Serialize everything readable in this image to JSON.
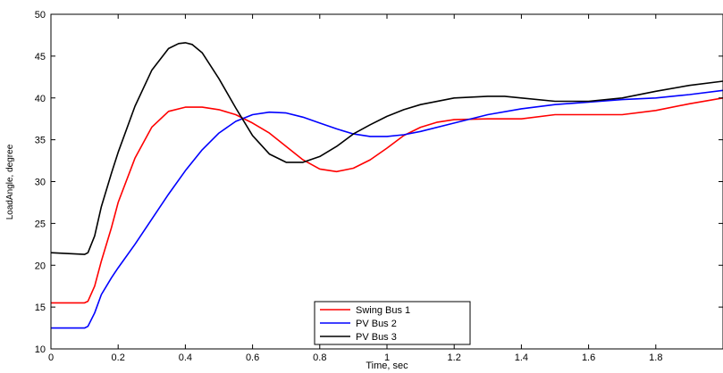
{
  "chart_data": {
    "type": "line",
    "title": "",
    "xlabel": "Time,  sec",
    "ylabel": "LoadAngle, degree",
    "xlim": [
      0,
      2
    ],
    "ylim": [
      10,
      50
    ],
    "xticks": [
      0,
      0.2,
      0.4,
      0.6,
      0.8,
      1,
      1.2,
      1.4,
      1.6,
      1.8
    ],
    "xtick_labels": [
      "0",
      "0.2",
      "0.4",
      "0.6",
      "0.8",
      "1",
      "1.2",
      "1.4",
      "1.6",
      "1.8"
    ],
    "yticks": [
      10,
      15,
      20,
      25,
      30,
      35,
      40,
      45,
      50
    ],
    "ytick_labels": [
      "10",
      "15",
      "20",
      "25",
      "30",
      "35",
      "40",
      "45",
      "50"
    ],
    "grid": false,
    "legend_position": "bottom-center",
    "series": [
      {
        "name": "Swing Bus 1",
        "color": "#ff0000",
        "x": [
          0,
          0.1,
          0.11,
          0.13,
          0.15,
          0.18,
          0.2,
          0.25,
          0.3,
          0.35,
          0.4,
          0.45,
          0.5,
          0.55,
          0.6,
          0.65,
          0.7,
          0.75,
          0.8,
          0.85,
          0.9,
          0.95,
          1.0,
          1.05,
          1.1,
          1.15,
          1.2,
          1.3,
          1.4,
          1.5,
          1.6,
          1.7,
          1.8,
          1.9,
          2.0
        ],
        "y": [
          15.5,
          15.5,
          15.7,
          17.5,
          20.5,
          24.5,
          27.5,
          32.8,
          36.5,
          38.4,
          38.9,
          38.9,
          38.6,
          38.0,
          37.0,
          35.8,
          34.2,
          32.6,
          31.5,
          31.2,
          31.6,
          32.6,
          34.0,
          35.5,
          36.5,
          37.1,
          37.4,
          37.5,
          37.5,
          38.0,
          38.0,
          38.0,
          38.5,
          39.3,
          40.0
        ]
      },
      {
        "name": "PV Bus 2",
        "color": "#0000ff",
        "x": [
          0,
          0.1,
          0.11,
          0.13,
          0.15,
          0.18,
          0.2,
          0.25,
          0.3,
          0.35,
          0.4,
          0.45,
          0.5,
          0.55,
          0.6,
          0.65,
          0.7,
          0.75,
          0.8,
          0.85,
          0.9,
          0.95,
          1.0,
          1.05,
          1.1,
          1.2,
          1.3,
          1.4,
          1.5,
          1.6,
          1.7,
          1.8,
          1.9,
          2.0
        ],
        "y": [
          12.5,
          12.5,
          12.7,
          14.3,
          16.5,
          18.5,
          19.7,
          22.5,
          25.5,
          28.5,
          31.3,
          33.8,
          35.8,
          37.2,
          38.0,
          38.3,
          38.2,
          37.7,
          37.0,
          36.3,
          35.7,
          35.4,
          35.4,
          35.6,
          36.0,
          37.0,
          38.0,
          38.7,
          39.2,
          39.5,
          39.8,
          40.0,
          40.4,
          40.9
        ]
      },
      {
        "name": "PV Bus 3",
        "color": "#000000",
        "x": [
          0,
          0.1,
          0.11,
          0.13,
          0.15,
          0.18,
          0.2,
          0.25,
          0.3,
          0.35,
          0.38,
          0.4,
          0.42,
          0.45,
          0.5,
          0.55,
          0.6,
          0.65,
          0.7,
          0.75,
          0.8,
          0.85,
          0.9,
          0.95,
          1.0,
          1.05,
          1.1,
          1.2,
          1.3,
          1.35,
          1.4,
          1.5,
          1.6,
          1.7,
          1.8,
          1.9,
          2.0
        ],
        "y": [
          21.5,
          21.3,
          21.5,
          23.5,
          27.0,
          31.0,
          33.5,
          39.0,
          43.3,
          45.9,
          46.5,
          46.6,
          46.4,
          45.4,
          42.3,
          38.8,
          35.5,
          33.3,
          32.3,
          32.3,
          33.0,
          34.2,
          35.7,
          36.8,
          37.8,
          38.6,
          39.2,
          40.0,
          40.2,
          40.2,
          40.0,
          39.6,
          39.6,
          40.0,
          40.8,
          41.5,
          42.0
        ]
      }
    ]
  }
}
